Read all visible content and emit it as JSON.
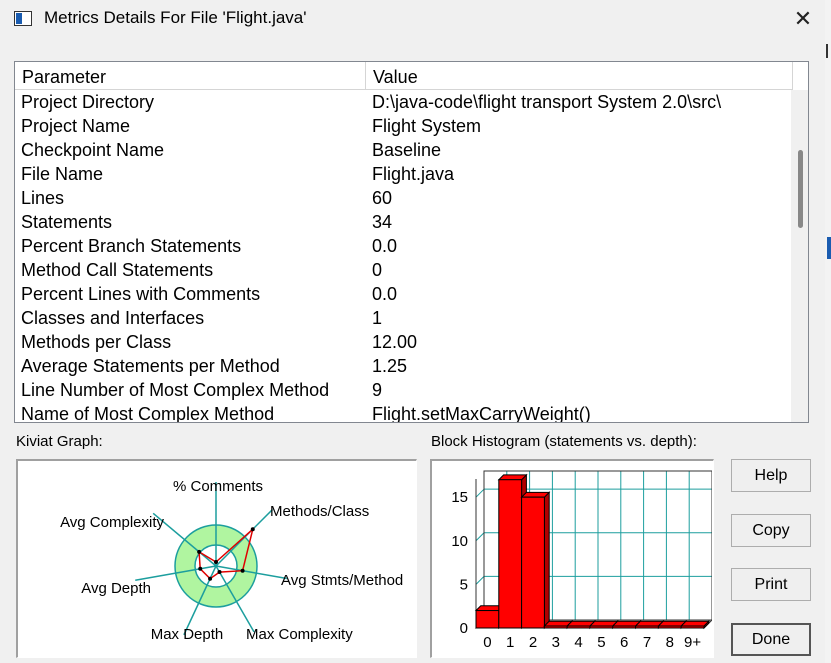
{
  "window": {
    "title": "Metrics Details For File 'Flight.java'",
    "close_glyph": "✕"
  },
  "table": {
    "headers": {
      "parameter": "Parameter",
      "value": "Value"
    },
    "rows": [
      {
        "k": "Project Directory",
        "v": "D:\\java-code\\flight transport System 2.0\\src\\"
      },
      {
        "k": "Project Name",
        "v": "Flight System"
      },
      {
        "k": "Checkpoint Name",
        "v": "Baseline"
      },
      {
        "k": "File Name",
        "v": "Flight.java"
      },
      {
        "k": "Lines",
        "v": "60"
      },
      {
        "k": "Statements",
        "v": "34"
      },
      {
        "k": "Percent Branch Statements",
        "v": "0.0"
      },
      {
        "k": "Method Call Statements",
        "v": "0"
      },
      {
        "k": "Percent Lines with Comments",
        "v": "0.0"
      },
      {
        "k": "Classes and Interfaces",
        "v": "1"
      },
      {
        "k": "Methods per Class",
        "v": "12.00"
      },
      {
        "k": "Average Statements per Method",
        "v": "1.25"
      },
      {
        "k": "Line Number of Most Complex Method",
        "v": "9"
      },
      {
        "k": "Name of Most Complex Method",
        "v": "Flight.setMaxCarryWeight()"
      }
    ]
  },
  "kiviat": {
    "label": "Kiviat Graph:",
    "axes": [
      {
        "label": "% Comments",
        "deg": -90
      },
      {
        "label": "Methods/Class",
        "deg": -45
      },
      {
        "label": "Avg Stmts/Method",
        "deg": 10
      },
      {
        "label": "Max Complexity",
        "deg": 60
      },
      {
        "label": "Max Depth",
        "deg": 115
      },
      {
        "label": "Avg Depth",
        "deg": 170
      },
      {
        "label": "Avg Complexity",
        "deg": -140
      }
    ],
    "colors": {
      "ring": "#b0f5a0",
      "axis": "#1c9e9e",
      "shape": "#e00000"
    }
  },
  "histogram": {
    "label": "Block Histogram (statements vs. depth):",
    "chart_data": {
      "type": "bar",
      "title": "Block Histogram (statements vs. depth):",
      "categories": [
        "0",
        "1",
        "2",
        "3",
        "4",
        "5",
        "6",
        "7",
        "8",
        "9+"
      ],
      "values": [
        2,
        17,
        15,
        0,
        0,
        0,
        0,
        0,
        0,
        0
      ],
      "yticks": [
        "0",
        "5",
        "10",
        "15"
      ],
      "ylim": [
        0,
        18
      ],
      "bar_color": "#ff0000",
      "grid_color": "#1c9e9e"
    }
  },
  "buttons": {
    "help": "Help",
    "copy": "Copy",
    "print": "Print",
    "done": "Done"
  }
}
